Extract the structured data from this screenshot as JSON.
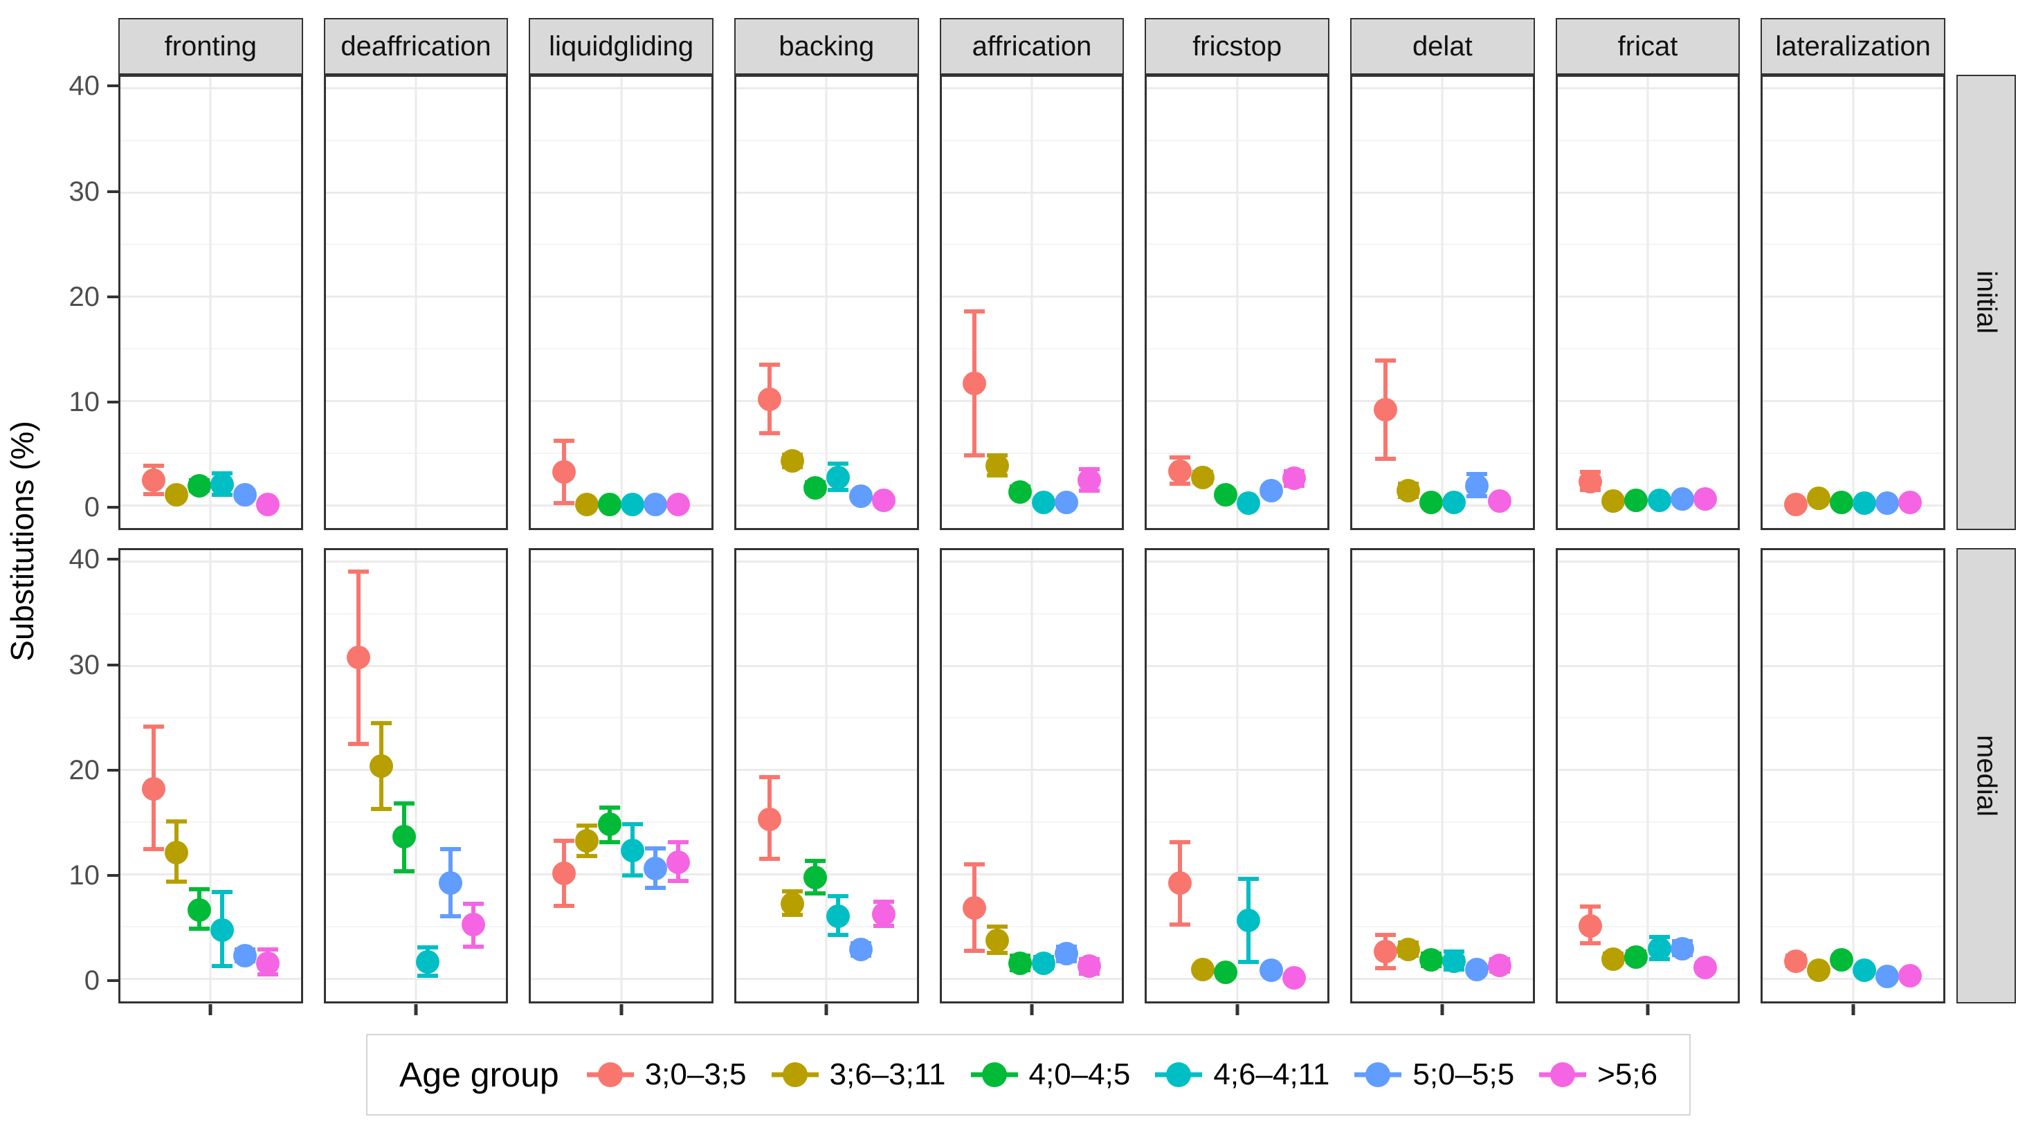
{
  "chart_data": {
    "type": "scatter",
    "title": "",
    "xlabel": "",
    "ylabel": "Substitutions (%)",
    "ylim": [
      0,
      40
    ],
    "y_ticks": [
      0,
      10,
      20,
      30,
      40
    ],
    "y_minor_ticks": [
      5,
      15,
      25,
      35
    ],
    "grid": true,
    "legend_title": "Age group",
    "legend_position": "bottom",
    "facet_cols": [
      "fronting",
      "deaffrication",
      "liquidgliding",
      "backing",
      "affrication",
      "fricstop",
      "delat",
      "fricat",
      "lateralization"
    ],
    "facet_rows": [
      "initial",
      "medial"
    ],
    "series": [
      {
        "label": "3;0–3;5",
        "color": "#F8766D"
      },
      {
        "label": "3;6–3;11",
        "color": "#B79F00"
      },
      {
        "label": "4;0–4;5",
        "color": "#00BA38"
      },
      {
        "label": "4;6–4;11",
        "color": "#00BFC4"
      },
      {
        "label": "5;0–5;5",
        "color": "#619CFF"
      },
      {
        "label": ">5;6",
        "color": "#F564E3"
      }
    ],
    "value_format": "[mean, ci_low, ci_high] in percent, series order as in legend",
    "panels": {
      "initial": {
        "fronting": [
          [
            2.4,
            1.1,
            3.8
          ],
          [
            1.0,
            0.7,
            1.4
          ],
          [
            1.9,
            1.4,
            2.4
          ],
          [
            2.0,
            1.0,
            3.1
          ],
          [
            1.0,
            0.7,
            1.4
          ],
          [
            0.1,
            0.0,
            0.3
          ]
        ],
        "deaffrication": null,
        "liquidgliding": [
          [
            3.2,
            0.2,
            6.2
          ],
          [
            0.1,
            0.0,
            0.2
          ],
          [
            0.1,
            0.0,
            0.2
          ],
          [
            0.1,
            0.0,
            0.2
          ],
          [
            0.1,
            0.0,
            0.2
          ],
          [
            0.1,
            0.0,
            0.2
          ]
        ],
        "backing": [
          [
            10.2,
            6.9,
            13.5
          ],
          [
            4.3,
            3.7,
            4.9
          ],
          [
            1.7,
            1.3,
            2.2
          ],
          [
            2.7,
            1.5,
            4.0
          ],
          [
            0.9,
            0.6,
            1.3
          ],
          [
            0.5,
            0.2,
            0.8
          ]
        ],
        "affrication": [
          [
            11.7,
            4.8,
            18.6
          ],
          [
            3.8,
            2.9,
            4.8
          ],
          [
            1.3,
            0.9,
            1.8
          ],
          [
            0.3,
            0.1,
            0.6
          ],
          [
            0.3,
            0.1,
            0.6
          ],
          [
            2.4,
            1.4,
            3.5
          ]
        ],
        "fricstop": [
          [
            3.3,
            2.1,
            4.6
          ],
          [
            2.7,
            2.2,
            3.2
          ],
          [
            1.0,
            0.7,
            1.4
          ],
          [
            0.2,
            0.0,
            0.4
          ],
          [
            1.4,
            1.0,
            1.8
          ],
          [
            2.6,
            1.9,
            3.3
          ]
        ],
        "delat": [
          [
            9.2,
            4.5,
            13.9
          ],
          [
            1.4,
            0.8,
            2.1
          ],
          [
            0.3,
            0.1,
            0.5
          ],
          [
            0.3,
            0.1,
            0.5
          ],
          [
            1.9,
            0.9,
            3.0
          ],
          [
            0.4,
            0.1,
            0.7
          ]
        ],
        "fricat": [
          [
            2.3,
            1.5,
            3.2
          ],
          [
            0.4,
            0.2,
            0.7
          ],
          [
            0.5,
            0.3,
            0.8
          ],
          [
            0.5,
            0.3,
            0.8
          ],
          [
            0.6,
            0.4,
            0.9
          ],
          [
            0.6,
            0.4,
            0.9
          ]
        ],
        "lateralization": [
          [
            0.1,
            0.0,
            0.3
          ],
          [
            0.7,
            0.4,
            1.0
          ],
          [
            0.3,
            0.1,
            0.5
          ],
          [
            0.2,
            0.1,
            0.4
          ],
          [
            0.2,
            0.1,
            0.4
          ],
          [
            0.3,
            0.1,
            0.5
          ]
        ]
      },
      "medial": {
        "fronting": [
          [
            18.2,
            12.4,
            24.2
          ],
          [
            12.1,
            9.3,
            15.1
          ],
          [
            6.6,
            4.8,
            8.6
          ],
          [
            4.7,
            1.2,
            8.3
          ],
          [
            2.2,
            1.7,
            2.8
          ],
          [
            1.5,
            0.4,
            2.8
          ]
        ],
        "deaffrication": [
          [
            30.8,
            22.5,
            39.0
          ],
          [
            20.4,
            16.3,
            24.5
          ],
          [
            13.6,
            10.3,
            16.8
          ],
          [
            1.6,
            0.3,
            3.0
          ],
          [
            9.2,
            6.0,
            12.4
          ],
          [
            5.2,
            3.1,
            7.2
          ]
        ],
        "liquidgliding": [
          [
            10.1,
            7.0,
            13.2
          ],
          [
            13.2,
            11.8,
            14.7
          ],
          [
            14.8,
            13.1,
            16.4
          ],
          [
            12.3,
            9.9,
            14.8
          ],
          [
            10.6,
            8.7,
            12.5
          ],
          [
            11.2,
            9.4,
            13.1
          ]
        ],
        "backing": [
          [
            15.3,
            11.5,
            19.3
          ],
          [
            7.2,
            6.1,
            8.4
          ],
          [
            9.7,
            8.2,
            11.3
          ],
          [
            6.0,
            4.2,
            7.9
          ],
          [
            2.8,
            2.2,
            3.4
          ],
          [
            6.2,
            5.1,
            7.4
          ]
        ],
        "affrication": [
          [
            6.8,
            2.7,
            11.0
          ],
          [
            3.7,
            2.5,
            5.0
          ],
          [
            1.5,
            0.8,
            2.2
          ],
          [
            1.5,
            1.0,
            2.1
          ],
          [
            2.4,
            1.7,
            3.1
          ],
          [
            1.2,
            0.5,
            1.9
          ]
        ],
        "fricstop": [
          [
            9.2,
            5.2,
            13.1
          ],
          [
            0.9,
            0.6,
            1.3
          ],
          [
            0.6,
            0.3,
            0.9
          ],
          [
            5.6,
            1.6,
            9.6
          ],
          [
            0.8,
            0.5,
            1.2
          ],
          [
            0.1,
            0.0,
            0.3
          ]
        ],
        "delat": [
          [
            2.6,
            1.0,
            4.2
          ],
          [
            2.8,
            2.2,
            3.5
          ],
          [
            1.8,
            1.2,
            2.4
          ],
          [
            1.7,
            0.9,
            2.6
          ],
          [
            0.9,
            0.6,
            1.3
          ],
          [
            1.3,
            0.7,
            1.9
          ]
        ],
        "fricat": [
          [
            5.1,
            3.4,
            6.9
          ],
          [
            1.9,
            1.5,
            2.4
          ],
          [
            2.1,
            1.6,
            2.6
          ],
          [
            2.9,
            1.9,
            4.0
          ],
          [
            2.9,
            2.3,
            3.6
          ],
          [
            1.1,
            0.7,
            1.5
          ]
        ],
        "lateralization": [
          [
            1.7,
            1.2,
            2.2
          ],
          [
            0.8,
            0.5,
            1.1
          ],
          [
            1.8,
            1.4,
            2.2
          ],
          [
            0.8,
            0.5,
            1.1
          ],
          [
            0.2,
            0.1,
            0.4
          ],
          [
            0.3,
            0.1,
            0.5
          ]
        ]
      }
    }
  }
}
